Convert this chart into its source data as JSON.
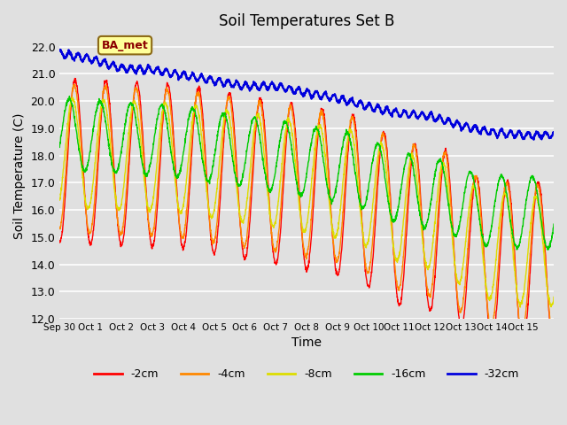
{
  "title": "Soil Temperatures Set B",
  "xlabel": "Time",
  "ylabel": "Soil Temperature (C)",
  "ylim": [
    12.0,
    22.5
  ],
  "yticks": [
    12.0,
    13.0,
    14.0,
    15.0,
    16.0,
    17.0,
    18.0,
    19.0,
    20.0,
    21.0,
    22.0
  ],
  "bg_color": "#e0e0e0",
  "plot_bg_color": "#e0e0e0",
  "grid_color": "#ffffff",
  "n_points": 2304,
  "days": 16,
  "xtick_labels": [
    "Sep 30",
    "Oct 1",
    "Oct 2",
    "Oct 3",
    "Oct 4",
    "Oct 5",
    "Oct 6",
    "Oct 7",
    "Oct 8",
    "Oct 9",
    "Oct 10",
    "Oct 11",
    "Oct 12",
    "Oct 13",
    "Oct 14",
    "Oct 15"
  ],
  "series": [
    {
      "label": "-2cm",
      "color": "#ff0000",
      "amplitude": 3.0,
      "phase": 0.0,
      "mean_pts": [
        0,
        4,
        8,
        9.5,
        11,
        12.5,
        13.5,
        15
      ],
      "mean_vals": [
        17.8,
        17.6,
        16.8,
        16.5,
        15.5,
        15.2,
        14.2,
        14.0
      ]
    },
    {
      "label": "-4cm",
      "color": "#ff8800",
      "amplitude": 2.7,
      "phase": 0.15,
      "mean_pts": [
        0,
        4,
        8,
        9.5,
        11,
        12.5,
        13.5,
        15
      ],
      "mean_vals": [
        17.9,
        17.7,
        17.0,
        16.7,
        15.8,
        15.4,
        14.5,
        14.2
      ]
    },
    {
      "label": "-8cm",
      "color": "#dddd00",
      "amplitude": 2.0,
      "phase": 0.5,
      "mean_pts": [
        0,
        4,
        8,
        9.5,
        11,
        12.5,
        13.5,
        15
      ],
      "mean_vals": [
        18.1,
        17.9,
        17.2,
        16.9,
        16.1,
        15.7,
        14.8,
        14.5
      ]
    },
    {
      "label": "-16cm",
      "color": "#00cc00",
      "amplitude": 1.3,
      "phase": 1.2,
      "mean_pts": [
        0,
        4,
        8,
        9.5,
        11,
        12.5,
        13.5,
        15
      ],
      "mean_vals": [
        18.8,
        18.5,
        17.8,
        17.5,
        16.8,
        16.5,
        16.0,
        15.9
      ]
    },
    {
      "label": "-32cm",
      "color": "#0000dd",
      "amplitude": 0.0,
      "phase": 0.0,
      "mean_pts": [
        0,
        1,
        2,
        3,
        4,
        5,
        6,
        7,
        8,
        9,
        10,
        11,
        12,
        13,
        14,
        15
      ],
      "mean_vals": [
        21.75,
        21.55,
        21.2,
        21.15,
        20.95,
        20.75,
        20.55,
        20.55,
        20.3,
        20.1,
        19.8,
        19.55,
        19.45,
        19.1,
        18.85,
        18.75
      ]
    }
  ],
  "annotation_text": "BA_met",
  "legend_colors": [
    "#ff0000",
    "#ff8800",
    "#dddd00",
    "#00cc00",
    "#0000dd"
  ],
  "legend_labels": [
    "-2cm",
    "-4cm",
    "-8cm",
    "-16cm",
    "-32cm"
  ]
}
